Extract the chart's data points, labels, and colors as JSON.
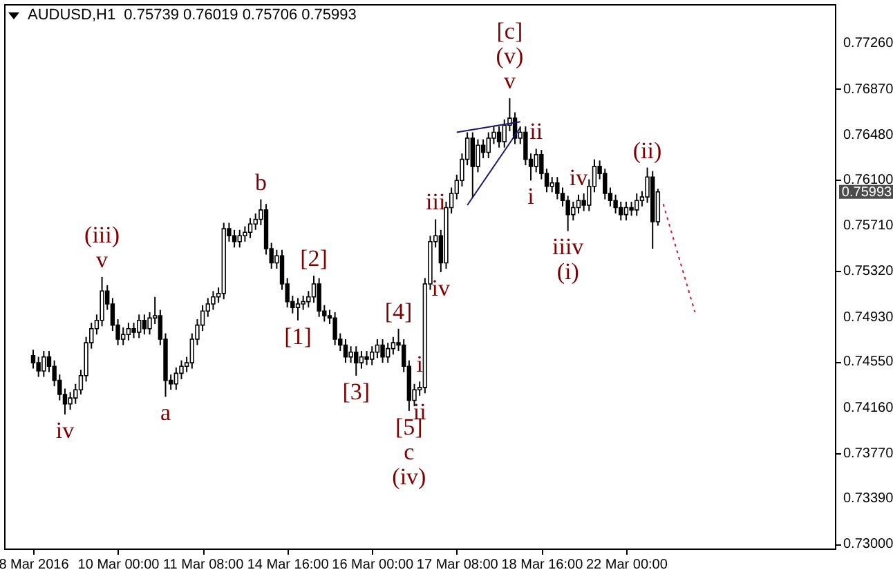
{
  "chart_data": {
    "type": "candlestick",
    "title": "AUDUSD,H1  0.75739 0.76019 0.75706 0.75993",
    "color": "#000000",
    "categories": [
      "8 Mar 2016",
      null,
      null,
      null,
      null,
      null,
      null,
      null,
      null,
      null,
      null,
      null,
      null,
      null,
      null,
      null,
      "10 Mar 00:00",
      null,
      null,
      null,
      null,
      null,
      null,
      null,
      null,
      null,
      null,
      null,
      null,
      null,
      null,
      null,
      "11 Mar 08:00",
      null,
      null,
      null,
      null,
      null,
      null,
      null,
      null,
      null,
      null,
      null,
      null,
      null,
      null,
      null,
      "14 Mar 16:00",
      null,
      null,
      null,
      null,
      null,
      null,
      null,
      null,
      null,
      null,
      null,
      null,
      null,
      null,
      null,
      "16 Mar 00:00",
      null,
      null,
      null,
      null,
      null,
      null,
      null,
      null,
      null,
      null,
      null,
      null,
      null,
      null,
      null,
      "17 Mar 08:00",
      null,
      null,
      null,
      null,
      null,
      null,
      null,
      null,
      null,
      null,
      null,
      null,
      null,
      null,
      null,
      "18 Mar 16:00",
      null,
      null,
      null,
      null,
      null,
      null,
      null,
      null,
      null,
      null,
      null,
      null,
      null,
      null,
      null,
      "22 Mar 00:00",
      null,
      null,
      null,
      null,
      null,
      null,
      null,
      null,
      null,
      null,
      null,
      null,
      null,
      null,
      null,
      null,
      null,
      null,
      null,
      null,
      null,
      null,
      null,
      null,
      null,
      null,
      null,
      null,
      null,
      null,
      null,
      null,
      null,
      null,
      null,
      null,
      null
    ],
    "ohlc": [
      [
        0.746,
        0.7465,
        0.7449,
        0.7454
      ],
      [
        0.7454,
        0.7459,
        0.7442,
        0.7447
      ],
      [
        0.7447,
        0.7464,
        0.7442,
        0.7459
      ],
      [
        0.7459,
        0.7464,
        0.7446,
        0.7451
      ],
      [
        0.7451,
        0.7456,
        0.7434,
        0.7439
      ],
      [
        0.7439,
        0.7444,
        0.7422,
        0.7427
      ],
      [
        0.7427,
        0.7432,
        0.741,
        0.7419
      ],
      [
        0.7419,
        0.7429,
        0.7414,
        0.7424
      ],
      [
        0.7424,
        0.7436,
        0.7419,
        0.7431
      ],
      [
        0.7431,
        0.7448,
        0.7427,
        0.7443
      ],
      [
        0.7443,
        0.7476,
        0.7438,
        0.7471
      ],
      [
        0.7471,
        0.7488,
        0.7466,
        0.7483
      ],
      [
        0.7483,
        0.7495,
        0.7478,
        0.749
      ],
      [
        0.749,
        0.7527,
        0.7485,
        0.7515
      ],
      [
        0.7515,
        0.752,
        0.7499,
        0.7504
      ],
      [
        0.7504,
        0.7509,
        0.7481,
        0.7486
      ],
      [
        0.7486,
        0.7491,
        0.7469,
        0.7474
      ],
      [
        0.7474,
        0.7484,
        0.7469,
        0.7478
      ],
      [
        0.7478,
        0.7488,
        0.7473,
        0.7483
      ],
      [
        0.7483,
        0.7488,
        0.7475,
        0.748
      ],
      [
        0.748,
        0.7495,
        0.7475,
        0.749
      ],
      [
        0.749,
        0.7495,
        0.7478,
        0.7483
      ],
      [
        0.7483,
        0.7497,
        0.7478,
        0.7492
      ],
      [
        0.7492,
        0.751,
        0.7487,
        0.7494
      ],
      [
        0.7494,
        0.7499,
        0.7469,
        0.7474
      ],
      [
        0.7474,
        0.7479,
        0.7425,
        0.7439
      ],
      [
        0.7439,
        0.7444,
        0.7431,
        0.7436
      ],
      [
        0.7436,
        0.745,
        0.7431,
        0.7445
      ],
      [
        0.7445,
        0.7456,
        0.744,
        0.7451
      ],
      [
        0.7451,
        0.7459,
        0.7446,
        0.7454
      ],
      [
        0.7454,
        0.7479,
        0.7449,
        0.7474
      ],
      [
        0.7474,
        0.7491,
        0.7469,
        0.7486
      ],
      [
        0.7486,
        0.7503,
        0.7481,
        0.7498
      ],
      [
        0.7498,
        0.7509,
        0.7493,
        0.7504
      ],
      [
        0.7504,
        0.7515,
        0.7499,
        0.751
      ],
      [
        0.751,
        0.7518,
        0.7505,
        0.7513
      ],
      [
        0.7513,
        0.7573,
        0.7508,
        0.7568
      ],
      [
        0.7568,
        0.7573,
        0.7557,
        0.7562
      ],
      [
        0.7562,
        0.7567,
        0.7552,
        0.7557
      ],
      [
        0.7557,
        0.7567,
        0.7552,
        0.7562
      ],
      [
        0.7562,
        0.757,
        0.7557,
        0.7565
      ],
      [
        0.7565,
        0.7577,
        0.756,
        0.7572
      ],
      [
        0.7572,
        0.7581,
        0.7567,
        0.7576
      ],
      [
        0.7576,
        0.7593,
        0.7571,
        0.7584
      ],
      [
        0.7584,
        0.7589,
        0.7546,
        0.7551
      ],
      [
        0.7551,
        0.7556,
        0.7534,
        0.7539
      ],
      [
        0.7539,
        0.755,
        0.7534,
        0.7545
      ],
      [
        0.7545,
        0.755,
        0.7516,
        0.7521
      ],
      [
        0.7521,
        0.7526,
        0.7501,
        0.7506
      ],
      [
        0.7506,
        0.7511,
        0.7496,
        0.7501
      ],
      [
        0.7501,
        0.7509,
        0.749,
        0.7504
      ],
      [
        0.7504,
        0.7511,
        0.7499,
        0.7506
      ],
      [
        0.7506,
        0.7515,
        0.7501,
        0.751
      ],
      [
        0.751,
        0.7528,
        0.7505,
        0.7521
      ],
      [
        0.7521,
        0.7526,
        0.7493,
        0.7498
      ],
      [
        0.7498,
        0.7503,
        0.7489,
        0.7494
      ],
      [
        0.7494,
        0.7499,
        0.7487,
        0.7492
      ],
      [
        0.7492,
        0.7497,
        0.7469,
        0.7474
      ],
      [
        0.7474,
        0.7479,
        0.7464,
        0.7469
      ],
      [
        0.7469,
        0.7474,
        0.7454,
        0.7459
      ],
      [
        0.7459,
        0.7468,
        0.7454,
        0.7463
      ],
      [
        0.7463,
        0.7468,
        0.7443,
        0.7454
      ],
      [
        0.7454,
        0.7464,
        0.7449,
        0.7459
      ],
      [
        0.7459,
        0.7464,
        0.7452,
        0.7457
      ],
      [
        0.7457,
        0.7468,
        0.7452,
        0.7463
      ],
      [
        0.7463,
        0.7474,
        0.7458,
        0.7469
      ],
      [
        0.7469,
        0.7474,
        0.7454,
        0.7459
      ],
      [
        0.7459,
        0.7471,
        0.7454,
        0.7466
      ],
      [
        0.7466,
        0.7476,
        0.7461,
        0.7471
      ],
      [
        0.7471,
        0.7483,
        0.7464,
        0.7469
      ],
      [
        0.7469,
        0.7474,
        0.7446,
        0.7451
      ],
      [
        0.7451,
        0.7456,
        0.7413,
        0.7422
      ],
      [
        0.7422,
        0.7436,
        0.7417,
        0.7431
      ],
      [
        0.7431,
        0.7438,
        0.7426,
        0.7433
      ],
      [
        0.7433,
        0.7526,
        0.7428,
        0.7521
      ],
      [
        0.7521,
        0.7562,
        0.7516,
        0.7557
      ],
      [
        0.7557,
        0.7576,
        0.7552,
        0.7562
      ],
      [
        0.7562,
        0.7567,
        0.7531,
        0.7539
      ],
      [
        0.7539,
        0.7591,
        0.7534,
        0.7586
      ],
      [
        0.7586,
        0.7603,
        0.7581,
        0.7598
      ],
      [
        0.7598,
        0.7614,
        0.7593,
        0.7609
      ],
      [
        0.7609,
        0.7632,
        0.7604,
        0.7627
      ],
      [
        0.7627,
        0.765,
        0.7622,
        0.7645
      ],
      [
        0.7645,
        0.765,
        0.7594,
        0.7621
      ],
      [
        0.7621,
        0.7644,
        0.7616,
        0.7639
      ],
      [
        0.7639,
        0.7644,
        0.7628,
        0.7633
      ],
      [
        0.7633,
        0.765,
        0.7628,
        0.7645
      ],
      [
        0.7645,
        0.7655,
        0.764,
        0.765
      ],
      [
        0.765,
        0.7655,
        0.7637,
        0.7642
      ],
      [
        0.7642,
        0.7661,
        0.7637,
        0.7656
      ],
      [
        0.7656,
        0.7679,
        0.7651,
        0.7662
      ],
      [
        0.7662,
        0.7667,
        0.764,
        0.7645
      ],
      [
        0.7645,
        0.7655,
        0.764,
        0.765
      ],
      [
        0.765,
        0.7655,
        0.7622,
        0.7627
      ],
      [
        0.7627,
        0.7632,
        0.7609,
        0.7621
      ],
      [
        0.7621,
        0.7636,
        0.7616,
        0.7631
      ],
      [
        0.7631,
        0.7635,
        0.761,
        0.7615
      ],
      [
        0.7615,
        0.7619,
        0.7599,
        0.7604
      ],
      [
        0.7604,
        0.7612,
        0.7599,
        0.7607
      ],
      [
        0.7607,
        0.7612,
        0.7593,
        0.7598
      ],
      [
        0.7598,
        0.7603,
        0.7587,
        0.7592
      ],
      [
        0.7592,
        0.7596,
        0.7566,
        0.758
      ],
      [
        0.758,
        0.7591,
        0.7575,
        0.7586
      ],
      [
        0.7586,
        0.7597,
        0.7581,
        0.7592
      ],
      [
        0.7592,
        0.7598,
        0.7583,
        0.7588
      ],
      [
        0.7588,
        0.761,
        0.7583,
        0.7604
      ],
      [
        0.7604,
        0.7627,
        0.7599,
        0.7621
      ],
      [
        0.7621,
        0.7626,
        0.761,
        0.7615
      ],
      [
        0.7615,
        0.7619,
        0.7593,
        0.7598
      ],
      [
        0.7598,
        0.7603,
        0.7587,
        0.7592
      ],
      [
        0.7592,
        0.7597,
        0.7581,
        0.7586
      ],
      [
        0.7586,
        0.7591,
        0.7575,
        0.758
      ],
      [
        0.758,
        0.7591,
        0.7575,
        0.7586
      ],
      [
        0.7586,
        0.7591,
        0.7579,
        0.7584
      ],
      [
        0.7584,
        0.7598,
        0.7579,
        0.7592
      ],
      [
        0.7592,
        0.76,
        0.7587,
        0.7595
      ],
      [
        0.7595,
        0.762,
        0.759,
        0.7612
      ],
      [
        0.7612,
        0.7617,
        0.7551,
        0.7574
      ],
      [
        0.75739,
        0.76019,
        0.75706,
        0.75993
      ],
      null,
      null,
      null,
      null,
      null,
      null,
      null,
      null,
      null,
      null,
      null,
      null,
      null,
      null,
      null,
      null,
      null,
      null,
      null,
      null,
      null,
      null,
      null,
      null,
      null,
      null,
      null,
      null,
      null,
      null,
      null
    ],
    "series": [
      {
        "type": "line",
        "color": "#dc143c",
        "line_style": "dotted",
        "values": [
          null,
          null,
          null,
          null,
          null,
          null,
          null,
          null,
          null,
          null,
          null,
          null,
          null,
          null,
          null,
          null,
          null,
          null,
          null,
          null,
          null,
          null,
          null,
          null,
          null,
          null,
          null,
          null,
          null,
          null,
          null,
          null,
          null,
          null,
          null,
          null,
          null,
          null,
          null,
          null,
          null,
          null,
          null,
          null,
          null,
          null,
          null,
          null,
          null,
          null,
          null,
          null,
          null,
          null,
          null,
          null,
          null,
          null,
          null,
          null,
          null,
          null,
          null,
          null,
          null,
          null,
          null,
          null,
          null,
          null,
          null,
          null,
          null,
          null,
          null,
          null,
          null,
          null,
          null,
          null,
          null,
          null,
          null,
          null,
          null,
          null,
          null,
          null,
          null,
          null,
          null,
          null,
          null,
          null,
          null,
          null,
          null,
          null,
          null,
          null,
          null,
          null,
          null,
          null,
          null,
          null,
          null,
          null,
          null,
          null,
          null,
          null,
          null,
          null,
          null,
          null,
          null,
          null,
          null,
          0.7589,
          null,
          null,
          null,
          null,
          null,
          0.7497,
          null,
          null,
          null,
          null,
          null,
          null,
          null,
          null,
          null,
          null,
          null,
          null,
          null,
          null,
          null,
          null,
          null,
          null,
          null,
          null,
          null,
          null,
          null,
          null
        ]
      },
      {
        "type": "line",
        "color": "#191970",
        "line_style": "solid",
        "values": [
          null,
          null,
          null,
          null,
          null,
          null,
          null,
          null,
          null,
          null,
          null,
          null,
          null,
          null,
          null,
          null,
          null,
          null,
          null,
          null,
          null,
          null,
          null,
          null,
          null,
          null,
          null,
          null,
          null,
          null,
          null,
          null,
          null,
          null,
          null,
          null,
          null,
          null,
          null,
          null,
          null,
          null,
          null,
          null,
          null,
          null,
          null,
          null,
          null,
          null,
          null,
          null,
          null,
          null,
          null,
          null,
          null,
          null,
          null,
          null,
          null,
          null,
          null,
          null,
          null,
          null,
          null,
          null,
          null,
          null,
          null,
          null,
          null,
          null,
          null,
          null,
          null,
          null,
          null,
          null,
          0.765,
          null,
          null,
          null,
          null,
          null,
          null,
          null,
          null,
          null,
          null,
          null,
          0.7659,
          null,
          null,
          null,
          null,
          null,
          null,
          null,
          null,
          null,
          null,
          null,
          null,
          null,
          null,
          null,
          null,
          null,
          null,
          null,
          null,
          null,
          null,
          null,
          null,
          null,
          null,
          null,
          null,
          null,
          null,
          null,
          null,
          null,
          null,
          null,
          null,
          null,
          null,
          null,
          null,
          null,
          null,
          null,
          null,
          null,
          null,
          null,
          null,
          null,
          null,
          null,
          null,
          null,
          null,
          null,
          null,
          null
        ]
      },
      {
        "type": "line",
        "color": "#191970",
        "line_style": "solid",
        "values": [
          null,
          null,
          null,
          null,
          null,
          null,
          null,
          null,
          null,
          null,
          null,
          null,
          null,
          null,
          null,
          null,
          null,
          null,
          null,
          null,
          null,
          null,
          null,
          null,
          null,
          null,
          null,
          null,
          null,
          null,
          null,
          null,
          null,
          null,
          null,
          null,
          null,
          null,
          null,
          null,
          null,
          null,
          null,
          null,
          null,
          null,
          null,
          null,
          null,
          null,
          null,
          null,
          null,
          null,
          null,
          null,
          null,
          null,
          null,
          null,
          null,
          null,
          null,
          null,
          null,
          null,
          null,
          null,
          null,
          null,
          null,
          null,
          null,
          null,
          null,
          null,
          null,
          null,
          null,
          null,
          null,
          null,
          0.7588,
          null,
          null,
          null,
          null,
          null,
          null,
          null,
          null,
          null,
          0.7654,
          null,
          null,
          null,
          null,
          null,
          null,
          null,
          null,
          null,
          null,
          null,
          null,
          null,
          null,
          null,
          null,
          null,
          null,
          null,
          null,
          null,
          null,
          null,
          null,
          null,
          null,
          null,
          null,
          null,
          null,
          null,
          null,
          null,
          null,
          null,
          null,
          null,
          null,
          null,
          null,
          null,
          null,
          null,
          null,
          null,
          null,
          null,
          null,
          null,
          null,
          null,
          null,
          null,
          null,
          null,
          null,
          null
        ]
      }
    ],
    "ylim": [
      0.7296,
      0.7759
    ],
    "yticks": [
      {
        "value": 0.7726,
        "label": "0.77260"
      },
      {
        "value": 0.7687,
        "label": "0.76870"
      },
      {
        "value": 0.7648,
        "label": "0.76480"
      },
      {
        "value": 0.761,
        "label": "0.76100"
      },
      {
        "value": 0.7571,
        "label": "0.75710"
      },
      {
        "value": 0.7532,
        "label": "0.75320"
      },
      {
        "value": 0.7493,
        "label": "0.74930"
      },
      {
        "value": 0.7455,
        "label": "0.74550"
      },
      {
        "value": 0.7416,
        "label": "0.74160"
      },
      {
        "value": 0.7377,
        "label": "0.73770"
      },
      {
        "value": 0.7339,
        "label": "0.73390"
      },
      {
        "value": 0.73,
        "label": "0.73000"
      }
    ],
    "grid": false,
    "annotations": [
      {
        "text": "iv",
        "y": 0.741
      },
      {
        "text": "v",
        "y": 0.7527
      },
      {
        "text": "(iii)",
        "y": 0.7527
      },
      {
        "text": "a",
        "y": 0.7425
      },
      {
        "text": "b",
        "y": 0.7593
      },
      {
        "text": "[1]",
        "y": 0.749
      },
      {
        "text": "[2]",
        "y": 0.7528
      },
      {
        "text": "[3]",
        "y": 0.7443
      },
      {
        "text": "[4]",
        "y": 0.7483
      },
      {
        "text": "[5]",
        "y": 0.7413
      },
      {
        "text": "c",
        "y": 0.7413
      },
      {
        "text": "(iv)",
        "y": 0.7413
      },
      {
        "text": "i",
        "y": 0.7438
      },
      {
        "text": "ii",
        "y": 0.7426
      },
      {
        "text": "iii",
        "y": 0.7576
      },
      {
        "text": "iv",
        "y": 0.7531
      },
      {
        "text": "v",
        "y": 0.7679
      },
      {
        "text": "(v)",
        "y": 0.7679
      },
      {
        "text": "[c]",
        "y": 0.7679
      },
      {
        "text": "ii",
        "y": 0.7636
      },
      {
        "text": "i",
        "y": 0.7609
      },
      {
        "text": "iv",
        "y": 0.7597
      },
      {
        "text": "iiiv",
        "y": 0.7566
      },
      {
        "text": "(i)",
        "y": 0.7566
      },
      {
        "text": "(ii)",
        "y": 0.762
      },
      "0.75993"
    ]
  }
}
